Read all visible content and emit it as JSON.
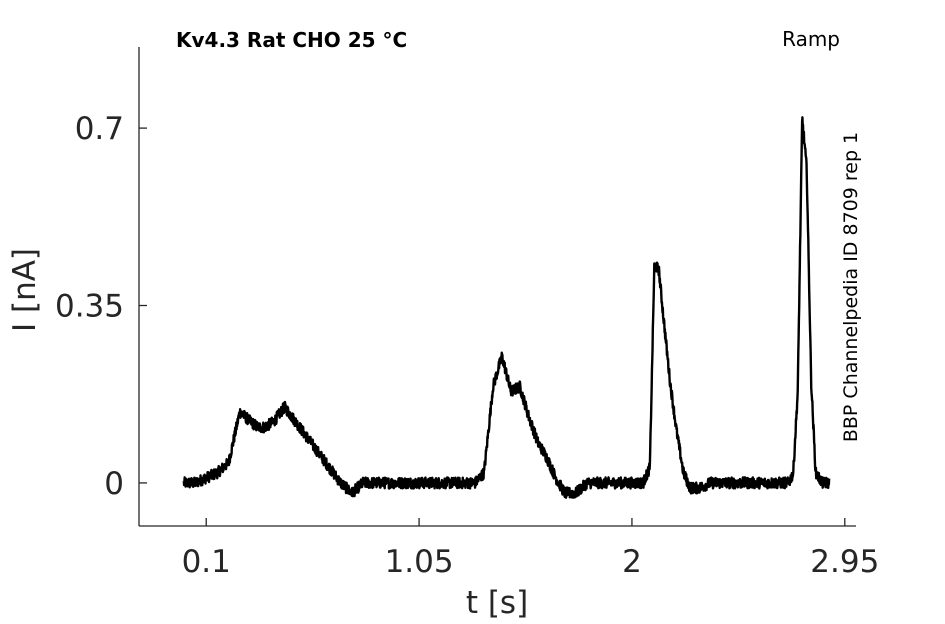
{
  "chart_data": {
    "type": "line",
    "title": "Kv4.3  Rat  CHO  25 °C",
    "protocol_label": "Ramp",
    "side_label": "BBP Channelpedia ID 8709 rep 1",
    "xlabel": "t [s]",
    "ylabel": "I [nA]",
    "xlim": [
      -0.2,
      3.0
    ],
    "ylim": [
      -0.085,
      0.86
    ],
    "xticks": [
      0.1,
      1.05,
      2,
      2.95
    ],
    "xtick_labels": [
      "0.1",
      "1.05",
      "2",
      "2.95"
    ],
    "yticks": [
      0,
      0.35,
      0.7
    ],
    "ytick_labels": [
      "0",
      "0.35",
      "0.7"
    ],
    "grid": false,
    "line_color": "#000000",
    "series": [
      {
        "x": [
          0.0,
          0.05,
          0.1,
          0.15,
          0.2,
          0.25,
          0.3,
          0.33,
          0.36,
          0.4,
          0.45,
          0.5,
          0.55,
          0.6,
          0.65,
          0.7,
          0.75,
          0.8,
          0.85,
          0.9,
          0.95,
          1.0,
          1.05,
          1.1,
          1.15,
          1.2,
          1.25,
          1.3,
          1.34,
          1.38,
          1.42,
          1.46,
          1.5,
          1.54,
          1.58,
          1.62,
          1.66,
          1.7,
          1.75,
          1.8,
          1.85,
          1.9,
          1.95,
          2.0,
          2.05,
          2.08,
          2.1,
          2.12,
          2.14,
          2.17,
          2.2,
          2.23,
          2.26,
          2.3,
          2.35,
          2.4,
          2.5,
          2.6,
          2.65,
          2.7,
          2.72,
          2.74,
          2.76,
          2.78,
          2.8,
          2.82,
          2.85,
          2.88
        ],
        "y": [
          0.0,
          0.0,
          0.01,
          0.02,
          0.04,
          0.14,
          0.12,
          0.11,
          0.11,
          0.12,
          0.15,
          0.12,
          0.09,
          0.06,
          0.03,
          0.0,
          -0.02,
          0.0,
          0.0,
          0.0,
          0.0,
          0.0,
          0.0,
          0.0,
          0.0,
          0.0,
          0.0,
          0.0,
          0.02,
          0.19,
          0.25,
          0.18,
          0.19,
          0.13,
          0.08,
          0.05,
          0.01,
          -0.02,
          -0.02,
          0.0,
          0.0,
          0.0,
          0.0,
          0.0,
          0.0,
          0.03,
          0.43,
          0.42,
          0.33,
          0.2,
          0.1,
          0.02,
          -0.01,
          -0.01,
          0.0,
          0.0,
          0.0,
          0.0,
          0.0,
          0.0,
          0.02,
          0.18,
          0.72,
          0.62,
          0.2,
          0.02,
          0.0,
          0.0
        ]
      }
    ]
  }
}
